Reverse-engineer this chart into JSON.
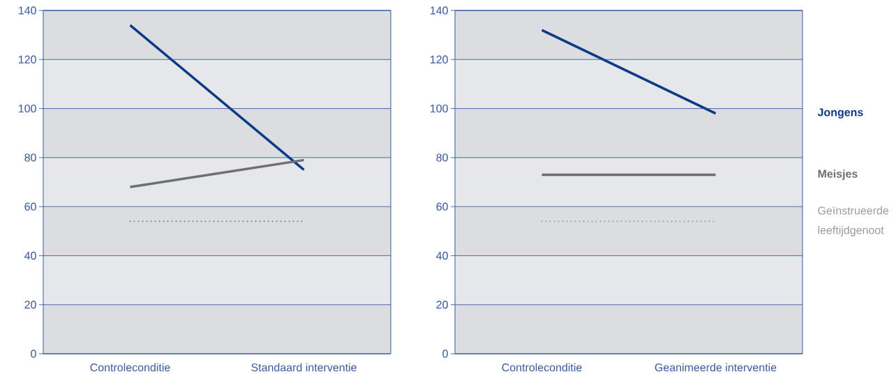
{
  "chart_data": [
    {
      "type": "line",
      "categories": [
        "Controleconditie",
        "Standaard interventie"
      ],
      "ylim": [
        0,
        140
      ],
      "yticks": [
        0,
        20,
        40,
        60,
        80,
        100,
        120,
        140
      ],
      "grid": "y",
      "bands": [
        {
          "axis": "y",
          "from": 0,
          "to": 20,
          "color": "#dcdde0"
        },
        {
          "axis": "y",
          "from": 20,
          "to": 40,
          "color": "#e6e7ea"
        },
        {
          "axis": "y",
          "from": 40,
          "to": 60,
          "color": "#dcdde0"
        },
        {
          "axis": "y",
          "from": 60,
          "to": 80,
          "color": "#e6e7ea"
        },
        {
          "axis": "y",
          "from": 80,
          "to": 100,
          "color": "#dcdde0"
        },
        {
          "axis": "y",
          "from": 100,
          "to": 120,
          "color": "#e6e7ea"
        },
        {
          "axis": "y",
          "from": 120,
          "to": 140,
          "color": "#dcdde0"
        }
      ],
      "series": [
        {
          "color": "#0b3a86",
          "values": [
            134,
            75
          ]
        },
        {
          "color": "#6e6e6e",
          "values": [
            68,
            79
          ]
        },
        {
          "color": "#7a7a7a",
          "values": [
            54,
            54
          ],
          "line_style": "dotted"
        }
      ]
    },
    {
      "type": "line",
      "categories": [
        "Controleconditie",
        "Geanimeerde interventie"
      ],
      "ylim": [
        0,
        140
      ],
      "yticks": [
        0,
        20,
        40,
        60,
        80,
        100,
        120,
        140
      ],
      "grid": "y",
      "legend": "right",
      "bands": [
        {
          "axis": "y",
          "from": 0,
          "to": 20,
          "color": "#dcdde0"
        },
        {
          "axis": "y",
          "from": 20,
          "to": 40,
          "color": "#e6e7ea"
        },
        {
          "axis": "y",
          "from": 40,
          "to": 60,
          "color": "#dcdde0"
        },
        {
          "axis": "y",
          "from": 60,
          "to": 80,
          "color": "#e6e7ea"
        },
        {
          "axis": "y",
          "from": 80,
          "to": 100,
          "color": "#dcdde0"
        },
        {
          "axis": "y",
          "from": 100,
          "to": 120,
          "color": "#e6e7ea"
        },
        {
          "axis": "y",
          "from": 120,
          "to": 140,
          "color": "#dcdde0"
        }
      ],
      "series": [
        {
          "name": "Jongens",
          "color": "#0b3a86",
          "values": [
            132,
            98
          ]
        },
        {
          "name": "Meisjes",
          "color": "#6e6e6e",
          "values": [
            73,
            73
          ]
        },
        {
          "name": "Geïnstrueerde leeftijdgenoot",
          "color": "#9a9a9a",
          "values": [
            54,
            54
          ],
          "line_style": "dotted"
        }
      ]
    }
  ]
}
